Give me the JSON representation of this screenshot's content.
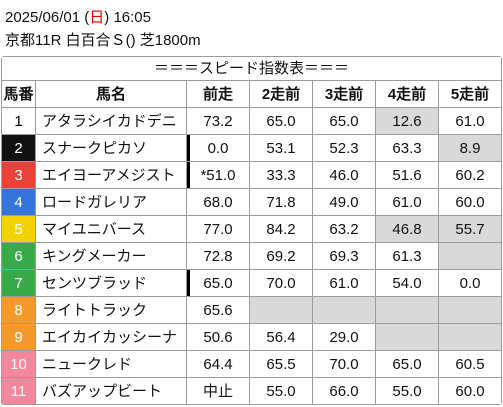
{
  "header": {
    "date": "2025/06/01",
    "weekday_open": "(",
    "weekday": "日",
    "weekday_close": ")",
    "time": "16:05",
    "race": "京都11R 白百合Ｓ() 芝1800m"
  },
  "colors": {
    "weekday": "#e00000",
    "shaded_cell": "#d9d9d9",
    "marker_bar": "#000000"
  },
  "table": {
    "title": "＝＝＝スピード指数表＝＝＝",
    "columns": [
      "馬番",
      "馬名",
      "前走",
      "2走前",
      "3走前",
      "4走前",
      "5走前"
    ],
    "rows": [
      {
        "number": "1",
        "frame_bg": "#ffffff",
        "frame_fg": "#000000",
        "name": "アタラシイカドデニ",
        "prev_marked": false,
        "values": [
          {
            "text": "73.2",
            "shaded": false
          },
          {
            "text": "65.0",
            "shaded": false
          },
          {
            "text": "65.0",
            "shaded": false
          },
          {
            "text": "12.6",
            "shaded": true
          },
          {
            "text": "61.0",
            "shaded": false
          }
        ]
      },
      {
        "number": "2",
        "frame_bg": "#111111",
        "frame_fg": "#ffffff",
        "name": "スナークピカソ",
        "prev_marked": true,
        "values": [
          {
            "text": "0.0",
            "shaded": false
          },
          {
            "text": "53.1",
            "shaded": false
          },
          {
            "text": "52.3",
            "shaded": false
          },
          {
            "text": "63.3",
            "shaded": false
          },
          {
            "text": "8.9",
            "shaded": true
          }
        ]
      },
      {
        "number": "3",
        "frame_bg": "#e8423a",
        "frame_fg": "#ffffff",
        "name": "エイヨーアメジスト",
        "prev_marked": true,
        "values": [
          {
            "text": "*51.0",
            "shaded": false
          },
          {
            "text": "33.3",
            "shaded": false
          },
          {
            "text": "46.0",
            "shaded": false
          },
          {
            "text": "51.6",
            "shaded": false
          },
          {
            "text": "60.2",
            "shaded": false
          }
        ]
      },
      {
        "number": "4",
        "frame_bg": "#3574d8",
        "frame_fg": "#ffffff",
        "name": "ロードガレリア",
        "prev_marked": false,
        "values": [
          {
            "text": "68.0",
            "shaded": false
          },
          {
            "text": "71.8",
            "shaded": false
          },
          {
            "text": "49.0",
            "shaded": false
          },
          {
            "text": "61.0",
            "shaded": false
          },
          {
            "text": "60.0",
            "shaded": false
          }
        ]
      },
      {
        "number": "5",
        "frame_bg": "#f2d200",
        "frame_fg": "#ffffff",
        "name": "マイユニバース",
        "prev_marked": false,
        "values": [
          {
            "text": "77.0",
            "shaded": false
          },
          {
            "text": "84.2",
            "shaded": false
          },
          {
            "text": "63.2",
            "shaded": false
          },
          {
            "text": "46.8",
            "shaded": true
          },
          {
            "text": "55.7",
            "shaded": true
          }
        ]
      },
      {
        "number": "6",
        "frame_bg": "#39aa48",
        "frame_fg": "#ffffff",
        "name": "キングメーカー",
        "prev_marked": false,
        "values": [
          {
            "text": "72.8",
            "shaded": false
          },
          {
            "text": "69.2",
            "shaded": false
          },
          {
            "text": "69.3",
            "shaded": false
          },
          {
            "text": "61.3",
            "shaded": false
          },
          {
            "text": "",
            "shaded": true
          }
        ]
      },
      {
        "number": "7",
        "frame_bg": "#39aa48",
        "frame_fg": "#ffffff",
        "name": "センツブラッド",
        "prev_marked": true,
        "values": [
          {
            "text": "65.0",
            "shaded": false
          },
          {
            "text": "70.0",
            "shaded": false
          },
          {
            "text": "61.0",
            "shaded": false
          },
          {
            "text": "54.0",
            "shaded": false
          },
          {
            "text": "0.0",
            "shaded": false
          }
        ]
      },
      {
        "number": "8",
        "frame_bg": "#f39a2b",
        "frame_fg": "#ffffff",
        "name": "ライトトラック",
        "prev_marked": false,
        "values": [
          {
            "text": "65.6",
            "shaded": false
          },
          {
            "text": "",
            "shaded": true
          },
          {
            "text": "",
            "shaded": true
          },
          {
            "text": "",
            "shaded": true
          },
          {
            "text": "",
            "shaded": true
          }
        ]
      },
      {
        "number": "9",
        "frame_bg": "#f39a2b",
        "frame_fg": "#ffffff",
        "name": "エイカイカッシーナ",
        "prev_marked": false,
        "values": [
          {
            "text": "50.6",
            "shaded": false
          },
          {
            "text": "56.4",
            "shaded": false
          },
          {
            "text": "29.0",
            "shaded": false
          },
          {
            "text": "",
            "shaded": true
          },
          {
            "text": "",
            "shaded": true
          }
        ]
      },
      {
        "number": "10",
        "frame_bg": "#f3879c",
        "frame_fg": "#ffffff",
        "name": "ニュークレド",
        "prev_marked": false,
        "values": [
          {
            "text": "64.4",
            "shaded": false
          },
          {
            "text": "65.5",
            "shaded": false
          },
          {
            "text": "70.0",
            "shaded": false
          },
          {
            "text": "65.0",
            "shaded": false
          },
          {
            "text": "60.5",
            "shaded": false
          }
        ]
      },
      {
        "number": "11",
        "frame_bg": "#f3879c",
        "frame_fg": "#ffffff",
        "name": "バズアップビート",
        "prev_marked": false,
        "values": [
          {
            "text": "中止",
            "shaded": false
          },
          {
            "text": "55.0",
            "shaded": false
          },
          {
            "text": "66.0",
            "shaded": false
          },
          {
            "text": "55.0",
            "shaded": false
          },
          {
            "text": "60.0",
            "shaded": false
          }
        ]
      }
    ]
  }
}
